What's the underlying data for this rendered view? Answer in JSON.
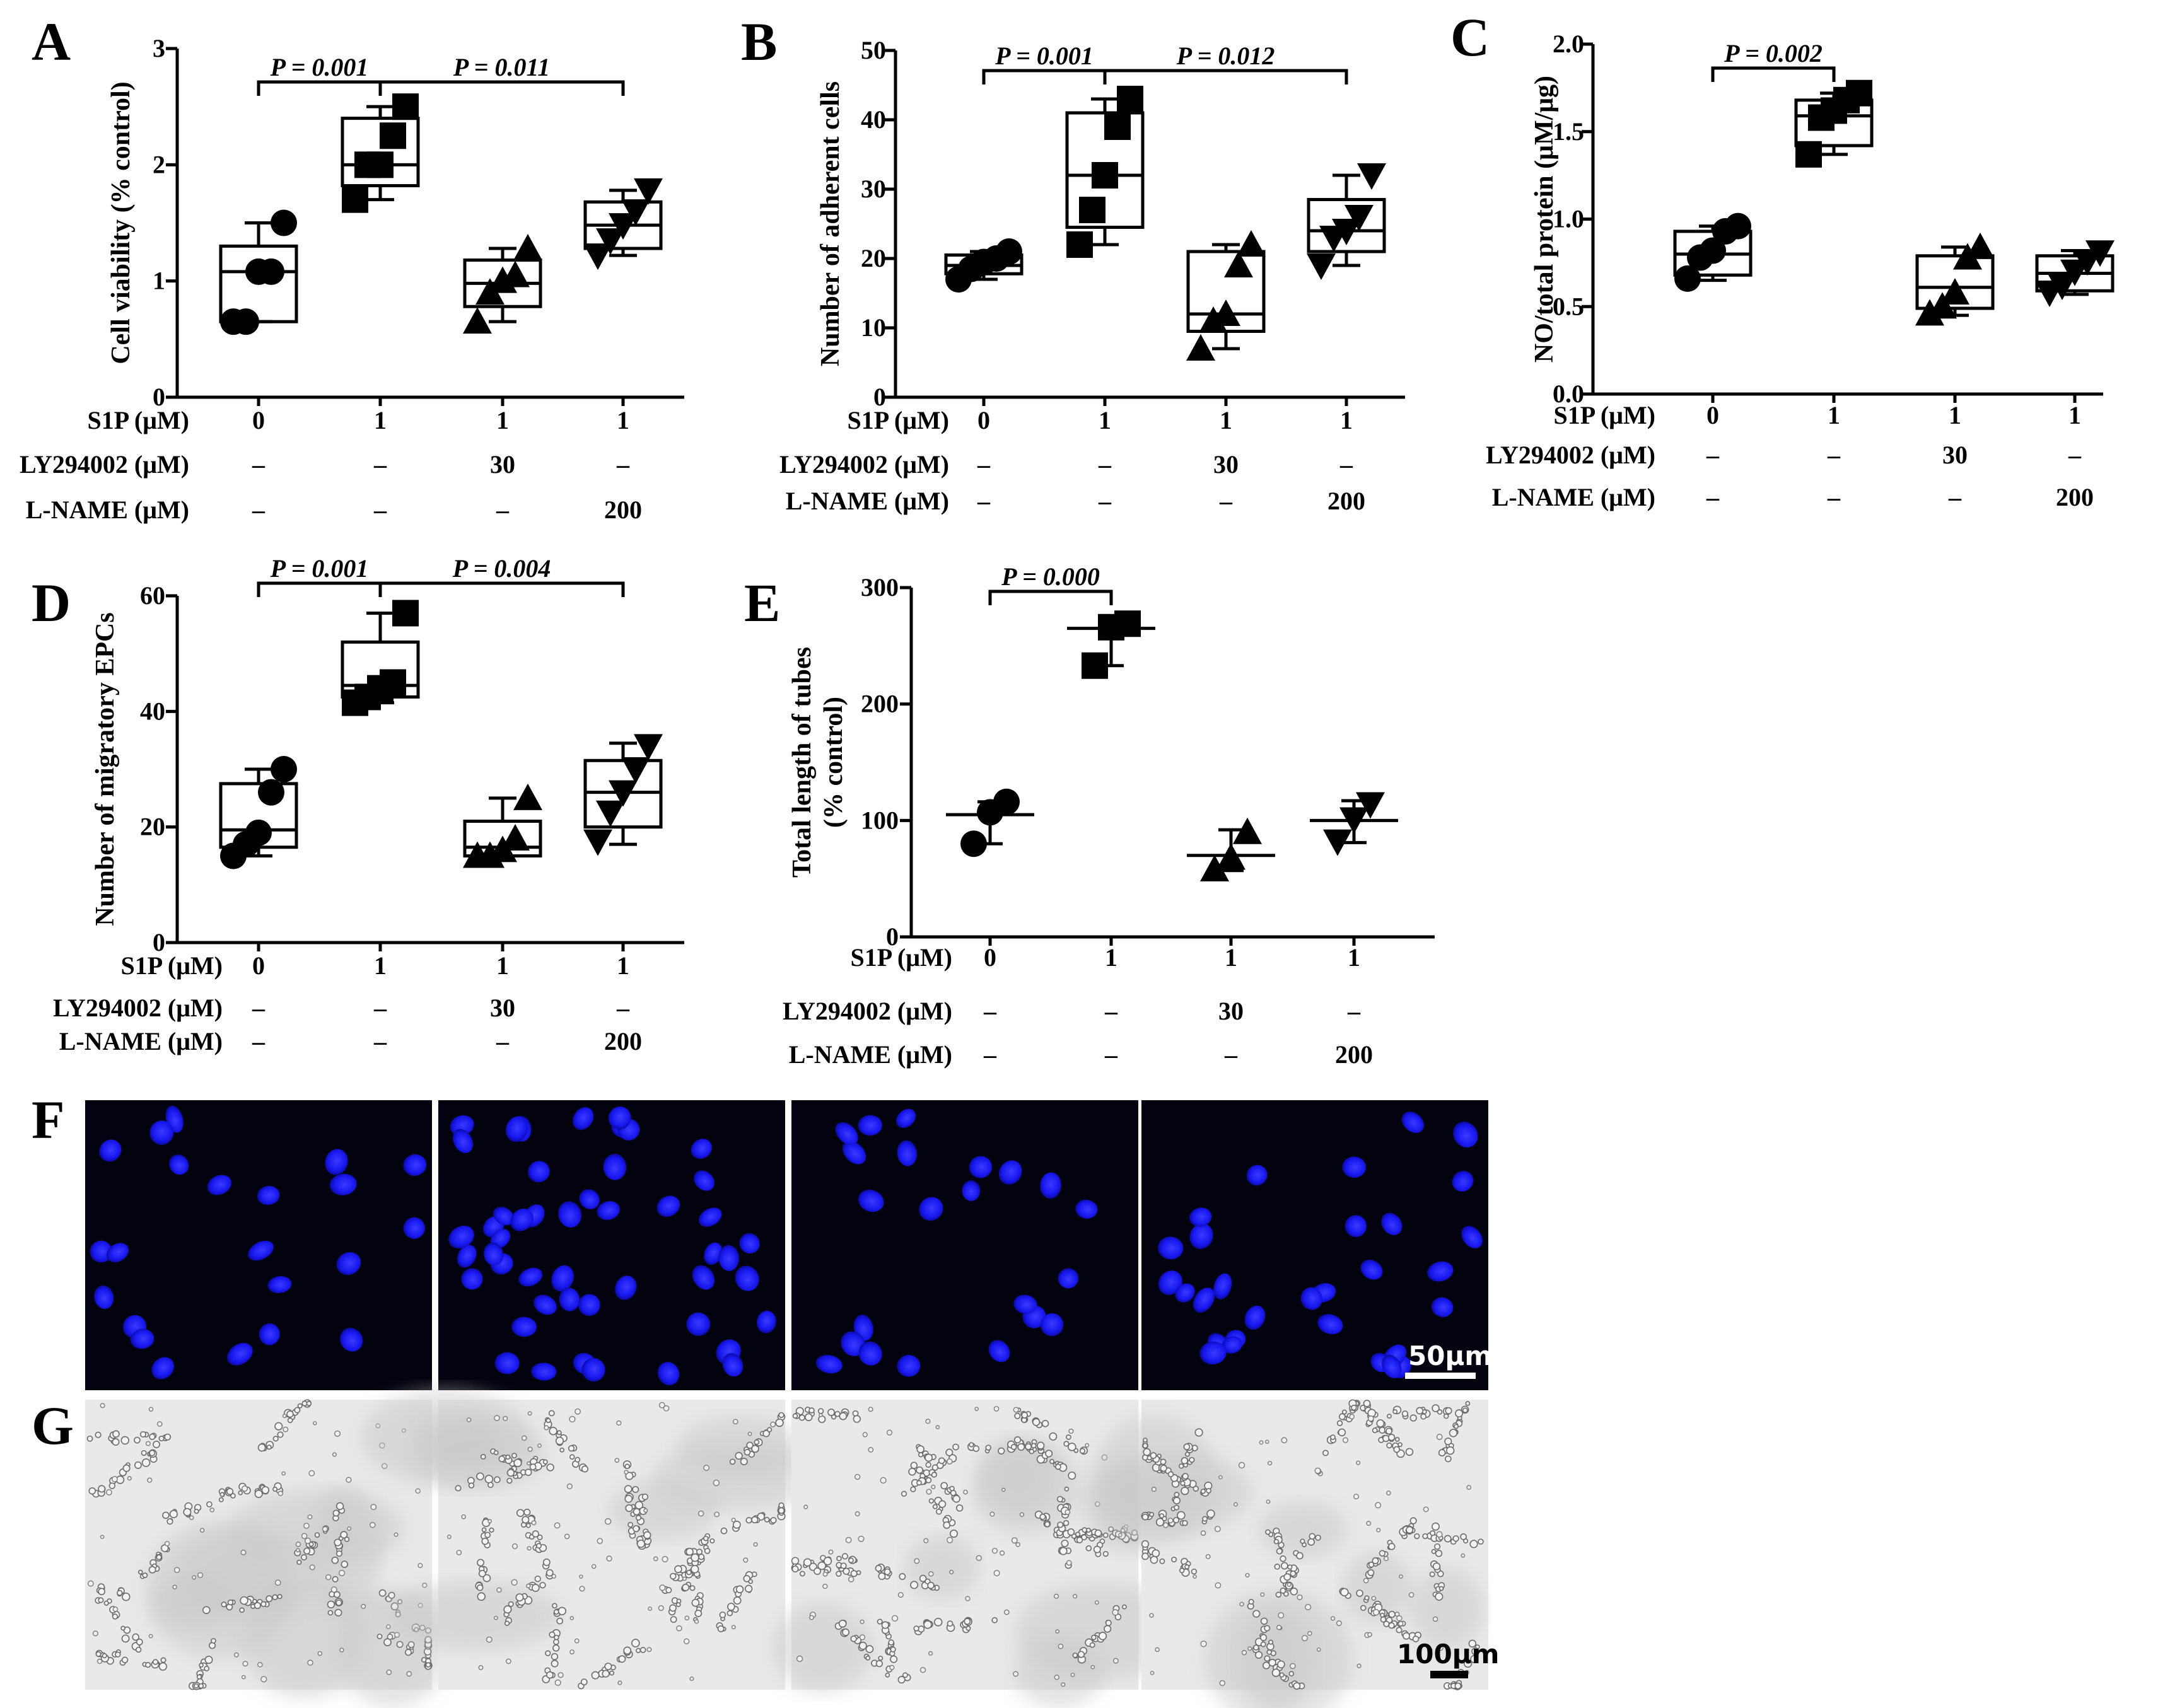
{
  "chart_data": [
    {
      "panel": "A",
      "type": "boxplot",
      "ylabel": "Cell viability (% control)",
      "ylim": [
        0,
        3
      ],
      "yticks": [
        "0",
        "1",
        "2",
        "3"
      ],
      "marker": [
        "circle",
        "square",
        "triangle",
        "invtriangle"
      ],
      "conditions": [
        {
          "label": "S1P (μM)",
          "values": [
            "0",
            "1",
            "1",
            "1"
          ]
        },
        {
          "label": "LY294002 (μM)",
          "values": [
            "–",
            "–",
            "30",
            "–"
          ]
        },
        {
          "label": "L-NAME (μM)",
          "values": [
            "–",
            "–",
            "–",
            "200"
          ]
        }
      ],
      "groups": [
        {
          "min": 0.65,
          "q1": 0.65,
          "median": 1.08,
          "q3": 1.3,
          "max": 1.5,
          "points": [
            0.65,
            0.65,
            1.08,
            1.08,
            1.5
          ]
        },
        {
          "min": 1.7,
          "q1": 1.82,
          "median": 2.0,
          "q3": 2.4,
          "max": 2.5,
          "points": [
            1.7,
            2.0,
            2.0,
            2.25,
            2.5
          ]
        },
        {
          "min": 0.65,
          "q1": 0.78,
          "median": 0.98,
          "q3": 1.18,
          "max": 1.28,
          "points": [
            0.65,
            0.9,
            1.0,
            1.05,
            1.28
          ]
        },
        {
          "min": 1.22,
          "q1": 1.28,
          "median": 1.48,
          "q3": 1.68,
          "max": 1.78,
          "points": [
            1.22,
            1.35,
            1.48,
            1.6,
            1.78
          ]
        }
      ],
      "brackets": [
        {
          "from": 0,
          "to": 1,
          "label": "P = 0.001"
        },
        {
          "from": 1,
          "to": 3,
          "label": "P = 0.011"
        }
      ]
    },
    {
      "panel": "B",
      "type": "boxplot",
      "ylabel": "Number of adherent cells",
      "ylim": [
        0,
        50
      ],
      "yticks": [
        "0",
        "10",
        "20",
        "30",
        "40",
        "50"
      ],
      "marker": [
        "circle",
        "square",
        "triangle",
        "invtriangle"
      ],
      "conditions": [
        {
          "label": "S1P (μM)",
          "values": [
            "0",
            "1",
            "1",
            "1"
          ]
        },
        {
          "label": "LY294002 (μM)",
          "values": [
            "–",
            "–",
            "30",
            "–"
          ]
        },
        {
          "label": "L-NAME (μM)",
          "values": [
            "–",
            "–",
            "–",
            "200"
          ]
        }
      ],
      "groups": [
        {
          "min": 17,
          "q1": 17.8,
          "median": 19,
          "q3": 20.5,
          "max": 21,
          "points": [
            17,
            18.5,
            19.5,
            20,
            21
          ]
        },
        {
          "min": 22,
          "q1": 24.5,
          "median": 32,
          "q3": 41,
          "max": 43,
          "points": [
            22,
            27,
            32,
            39,
            43
          ]
        },
        {
          "min": 7,
          "q1": 9.5,
          "median": 12,
          "q3": 21,
          "max": 22,
          "points": [
            7,
            11,
            12,
            19,
            22
          ]
        },
        {
          "min": 19,
          "q1": 21,
          "median": 24,
          "q3": 28.5,
          "max": 32,
          "points": [
            19,
            23,
            24,
            26,
            32
          ]
        }
      ],
      "brackets": [
        {
          "from": 0,
          "to": 1,
          "label": "P = 0.001"
        },
        {
          "from": 1,
          "to": 3,
          "label": "P = 0.012"
        }
      ]
    },
    {
      "panel": "C",
      "type": "boxplot",
      "ylabel": "NO/total protein (μM/μg)",
      "ylim": [
        0,
        2
      ],
      "yticks": [
        "0.0",
        "0.5",
        "1.0",
        "1.5",
        "2.0"
      ],
      "marker": [
        "circle",
        "square",
        "triangle",
        "invtriangle"
      ],
      "conditions": [
        {
          "label": "S1P (μM)",
          "values": [
            "0",
            "1",
            "1",
            "1"
          ]
        },
        {
          "label": "LY294002 (μM)",
          "values": [
            "–",
            "–",
            "30",
            "–"
          ]
        },
        {
          "label": "L-NAME (μM)",
          "values": [
            "–",
            "–",
            "–",
            "200"
          ]
        }
      ],
      "groups": [
        {
          "min": 0.65,
          "q1": 0.68,
          "median": 0.8,
          "q3": 0.93,
          "max": 0.96,
          "points": [
            0.66,
            0.78,
            0.82,
            0.93,
            0.96
          ]
        },
        {
          "min": 1.37,
          "q1": 1.42,
          "median": 1.59,
          "q3": 1.68,
          "max": 1.72,
          "points": [
            1.37,
            1.58,
            1.62,
            1.68,
            1.72
          ]
        },
        {
          "min": 0.45,
          "q1": 0.49,
          "median": 0.61,
          "q3": 0.79,
          "max": 0.84,
          "points": [
            0.46,
            0.5,
            0.58,
            0.78,
            0.84
          ]
        },
        {
          "min": 0.57,
          "q1": 0.59,
          "median": 0.69,
          "q3": 0.79,
          "max": 0.82,
          "points": [
            0.58,
            0.62,
            0.7,
            0.76,
            0.81
          ]
        }
      ],
      "brackets": [
        {
          "from": 0,
          "to": 1,
          "label": "P = 0.002"
        }
      ]
    },
    {
      "panel": "D",
      "type": "boxplot",
      "ylabel": "Number of migratory EPCs",
      "ylim": [
        0,
        60
      ],
      "yticks": [
        "0",
        "20",
        "40",
        "60"
      ],
      "marker": [
        "circle",
        "square",
        "triangle",
        "invtriangle"
      ],
      "conditions": [
        {
          "label": "S1P (μM)",
          "values": [
            "0",
            "1",
            "1",
            "1"
          ]
        },
        {
          "label": "LY294002 (μM)",
          "values": [
            "–",
            "–",
            "30",
            "–"
          ]
        },
        {
          "label": "L-NAME (μM)",
          "values": [
            "–",
            "–",
            "–",
            "200"
          ]
        }
      ],
      "groups": [
        {
          "min": 15,
          "q1": 16.5,
          "median": 19.5,
          "q3": 27.5,
          "max": 30,
          "points": [
            15,
            17,
            19,
            26,
            30
          ]
        },
        {
          "min": 41.5,
          "q1": 42.5,
          "median": 44.5,
          "q3": 52,
          "max": 57,
          "points": [
            41.5,
            42.5,
            44,
            45,
            57
          ]
        },
        {
          "min": 15,
          "q1": 15,
          "median": 16.5,
          "q3": 21,
          "max": 25,
          "points": [
            15,
            15,
            16,
            18,
            25
          ]
        },
        {
          "min": 17,
          "q1": 20,
          "median": 26,
          "q3": 31.5,
          "max": 34.5,
          "points": [
            17.5,
            22.5,
            26,
            30,
            34
          ]
        }
      ],
      "brackets": [
        {
          "from": 0,
          "to": 1,
          "label": "P = 0.001"
        },
        {
          "from": 1,
          "to": 3,
          "label": "P = 0.004"
        }
      ]
    },
    {
      "panel": "E",
      "type": "errorbar",
      "ylabel": [
        "Total length of tubes",
        "(% control)"
      ],
      "ylim": [
        0,
        300
      ],
      "yticks": [
        "0",
        "100",
        "200",
        "300"
      ],
      "marker": [
        "circle",
        "square",
        "triangle",
        "invtriangle"
      ],
      "conditions": [
        {
          "label": "S1P (μM)",
          "values": [
            "0",
            "1",
            "1",
            "1"
          ]
        },
        {
          "label": "LY294002 (μM)",
          "values": [
            "–",
            "–",
            "30",
            "–"
          ]
        },
        {
          "label": "L-NAME (μM)",
          "values": [
            "–",
            "–",
            "–",
            "200"
          ]
        }
      ],
      "groups": [
        {
          "mean": 105,
          "low": 80,
          "high": 116,
          "points": [
            80,
            107,
            116
          ]
        },
        {
          "mean": 265,
          "low": 233,
          "high": 270,
          "points": [
            233,
            266,
            269
          ]
        },
        {
          "mean": 70,
          "low": 57,
          "high": 92,
          "points": [
            58,
            68,
            90
          ]
        },
        {
          "mean": 100,
          "low": 81,
          "high": 117,
          "points": [
            82,
            101,
            114
          ]
        }
      ],
      "brackets": [
        {
          "from": 0,
          "to": 1,
          "label": "P = 0.000"
        }
      ]
    }
  ],
  "image_panels": [
    {
      "panel": "F",
      "scale_bar": "50μm"
    },
    {
      "panel": "G",
      "scale_bar": "100μm"
    }
  ],
  "colors": {
    "axis": "#000000",
    "fluorescence_bg": "#03030f",
    "nucleus": "#1f1fff",
    "brightfield_bg": "#e9e9e9"
  }
}
